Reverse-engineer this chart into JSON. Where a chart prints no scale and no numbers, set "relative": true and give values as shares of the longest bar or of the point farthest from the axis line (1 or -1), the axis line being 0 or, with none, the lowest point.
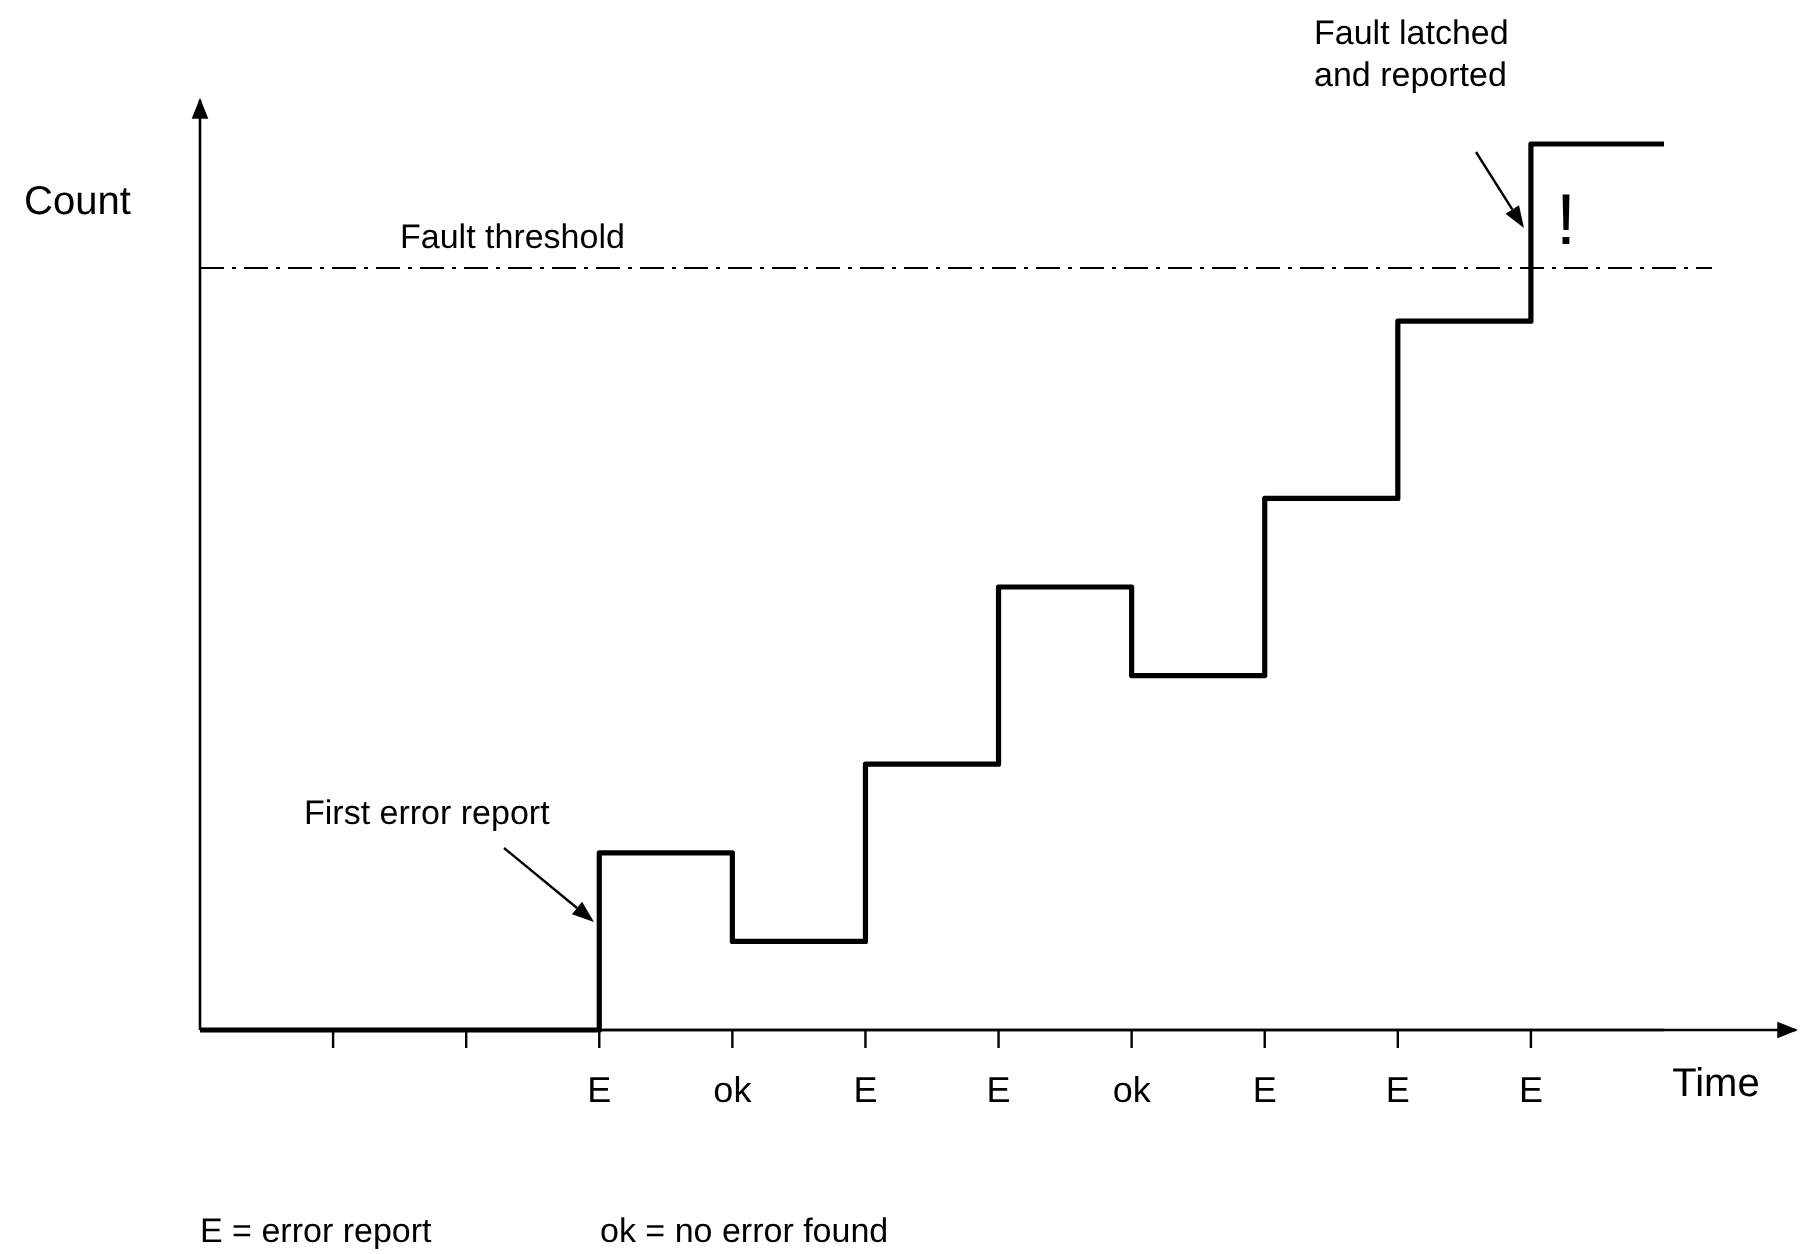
{
  "chart_data": {
    "type": "step",
    "relative": true,
    "xlabel": "Time",
    "ylabel": "Count",
    "categories": [
      null,
      null,
      null,
      "E",
      "ok",
      "E",
      "E",
      "ok",
      "E",
      "E",
      "E",
      null
    ],
    "values": [
      0,
      0,
      0,
      0.2,
      0.1,
      0.3,
      0.5,
      0.4,
      0.6,
      0.8,
      1.0,
      1.0
    ],
    "color": "#000000",
    "ref_lines": [
      {
        "axis": "y",
        "value": 0.86,
        "label": "Fault threshold",
        "line_style": "dashdot",
        "color": "#000000"
      }
    ],
    "annotations": [
      "First error report",
      "Fault latched and reported",
      "!",
      "E = error report",
      "ok = no error found"
    ],
    "line_style": "solid"
  }
}
